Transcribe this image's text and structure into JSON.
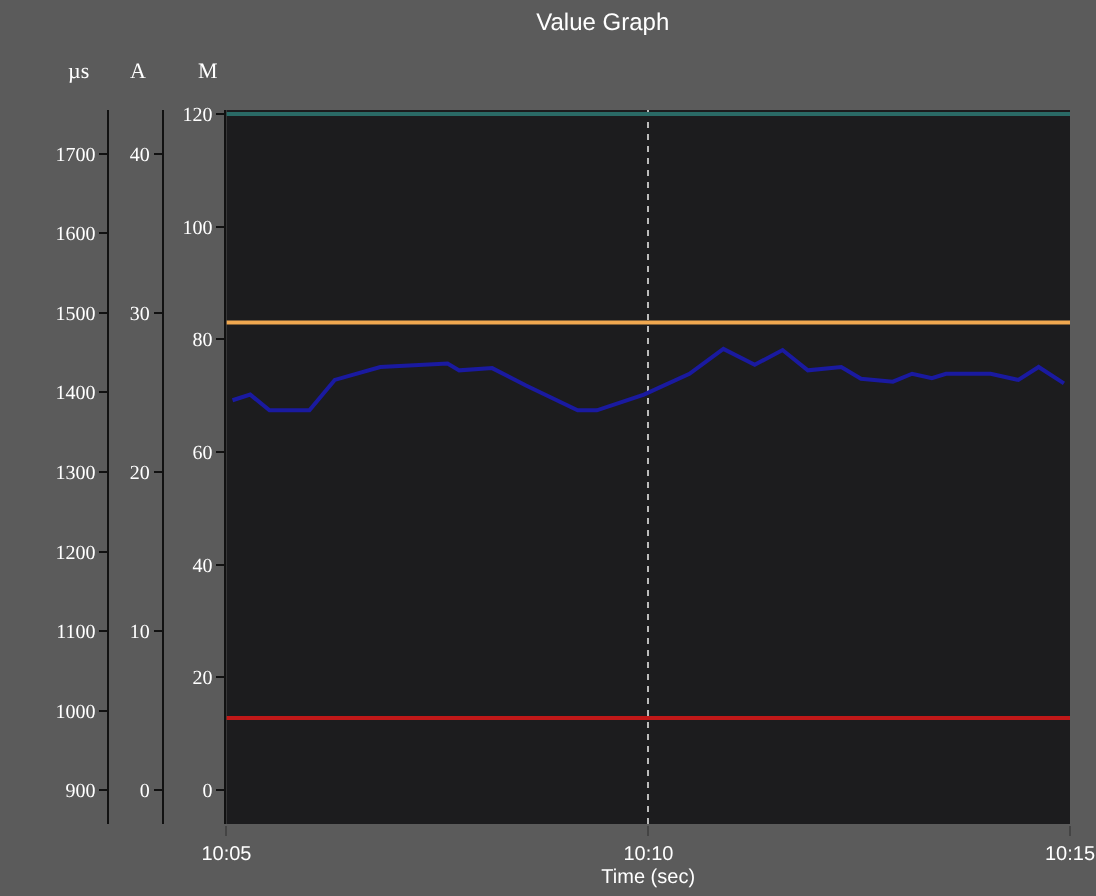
{
  "chart_data": {
    "type": "line",
    "title": "Value Graph",
    "xlabel": "Time (sec)",
    "ylabel": "M",
    "y2label": "A",
    "y3label": "µs",
    "xlim": [
      10.0833,
      10.25
    ],
    "xticks": [
      {
        "value": 10.0833,
        "label": "10:05"
      },
      {
        "value": 10.1667,
        "label": "10:10"
      },
      {
        "value": 10.25,
        "label": "10:15"
      }
    ],
    "ylim": [
      -6,
      120.7
    ],
    "yticks": [
      0,
      20,
      40,
      60,
      80,
      100,
      120
    ],
    "y2lim": [
      -2.13,
      42.77
    ],
    "y2ticks": [
      0,
      10,
      20,
      30,
      40
    ],
    "y3lim": [
      857.5,
      1755
    ],
    "y3ticks": [
      900,
      1000,
      1100,
      1200,
      1300,
      1400,
      1500,
      1600,
      1700
    ],
    "grid": "x",
    "marker": "none",
    "line_style": "solid",
    "series": [
      {
        "color": "#1a1aa0",
        "x": [
          10.0845,
          10.088,
          10.0918,
          10.0997,
          10.1047,
          10.1137,
          10.127,
          10.1293,
          10.1358,
          10.1425,
          10.1527,
          10.1565,
          10.1658,
          10.1748,
          10.1815,
          10.1877,
          10.1932,
          10.1982,
          10.2048,
          10.2087,
          10.215,
          10.2188,
          10.2227,
          10.2255,
          10.2343,
          10.2398,
          10.2438,
          10.2488
        ],
        "values": [
          69.2,
          70.2,
          67.4,
          67.4,
          72.8,
          75.1,
          75.7,
          74.5,
          74.9,
          71.8,
          67.4,
          67.4,
          70.2,
          73.9,
          78.3,
          75.5,
          78.1,
          74.5,
          75.1,
          73.0,
          72.5,
          73.9,
          73.1,
          73.9,
          73.9,
          72.8,
          75.1,
          72.2
        ]
      },
      {
        "color": "#f0a850",
        "x": [
          10.0833,
          10.25
        ],
        "values": [
          83,
          83
        ]
      },
      {
        "color": "#c01818",
        "x": [
          10.0833,
          10.25
        ],
        "values": [
          12.8,
          12.8
        ]
      },
      {
        "color": "#2a6a66",
        "x": [
          10.0833,
          10.25
        ],
        "values": [
          120,
          120
        ]
      }
    ]
  }
}
